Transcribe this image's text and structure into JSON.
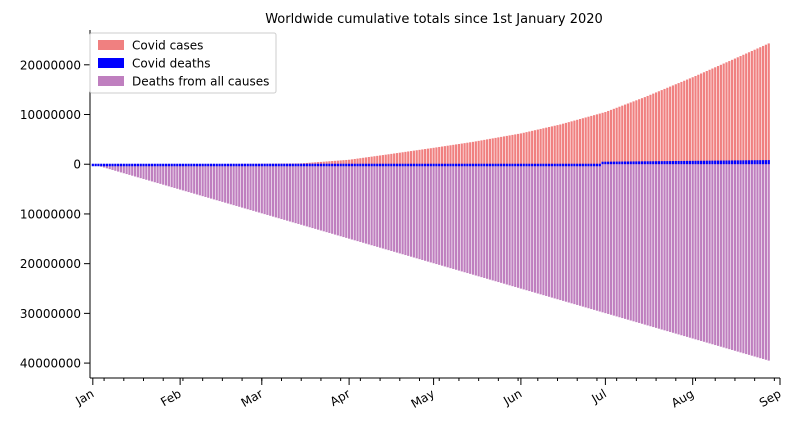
{
  "chart_data": {
    "type": "bar",
    "title": "Worldwide cumulative totals since 1st January 2020",
    "xlabel": "",
    "ylabel": "",
    "x_range": [
      "2019-12-31",
      "2020-09-01"
    ],
    "ylim": [
      -43000000,
      27000000
    ],
    "y_axis_display": "absolute values (negative side shown without minus sign)",
    "y_ticks": [
      20000000,
      10000000,
      0,
      -10000000,
      -20000000,
      -30000000,
      -40000000
    ],
    "y_tick_labels": [
      "20000000",
      "10000000",
      "0",
      "10000000",
      "20000000",
      "30000000",
      "40000000"
    ],
    "x_tick_labels": [
      "Jan",
      "Feb",
      "Mar",
      "Apr",
      "May",
      "Jun",
      "Jul",
      "Aug",
      "Sep"
    ],
    "x_tick_dates": [
      "2020-01-01",
      "2020-02-01",
      "2020-03-01",
      "2020-04-01",
      "2020-05-01",
      "2020-06-01",
      "2020-07-01",
      "2020-08-01",
      "2020-09-01"
    ],
    "legend_position": "top-left",
    "series": [
      {
        "name": "Covid cases",
        "color": "#f08080",
        "points": [
          {
            "date": "2020-01-01",
            "value": 0
          },
          {
            "date": "2020-02-01",
            "value": 12000
          },
          {
            "date": "2020-03-01",
            "value": 90000
          },
          {
            "date": "2020-03-15",
            "value": 170000
          },
          {
            "date": "2020-04-01",
            "value": 900000
          },
          {
            "date": "2020-04-15",
            "value": 2000000
          },
          {
            "date": "2020-05-01",
            "value": 3300000
          },
          {
            "date": "2020-05-15",
            "value": 4500000
          },
          {
            "date": "2020-06-01",
            "value": 6200000
          },
          {
            "date": "2020-06-15",
            "value": 8000000
          },
          {
            "date": "2020-07-01",
            "value": 10500000
          },
          {
            "date": "2020-07-15",
            "value": 13500000
          },
          {
            "date": "2020-08-01",
            "value": 17500000
          },
          {
            "date": "2020-08-15",
            "value": 21000000
          },
          {
            "date": "2020-08-28",
            "value": 24300000
          }
        ]
      },
      {
        "name": "Covid deaths",
        "color": "#0000ff",
        "points": [
          {
            "date": "2020-01-01",
            "value": 0
          },
          {
            "date": "2020-03-01",
            "value": 3000
          },
          {
            "date": "2020-04-01",
            "value": 50000
          },
          {
            "date": "2020-05-01",
            "value": 230000
          },
          {
            "date": "2020-06-01",
            "value": 370000
          },
          {
            "date": "2020-07-01",
            "value": 510000
          },
          {
            "date": "2020-08-01",
            "value": 680000
          },
          {
            "date": "2020-08-28",
            "value": 830000
          }
        ]
      },
      {
        "name": "Deaths from all causes",
        "color": "#bf7fbf",
        "points": [
          {
            "date": "2020-01-01",
            "value": 0
          },
          {
            "date": "2020-08-28",
            "value": -39500000
          }
        ]
      }
    ]
  }
}
